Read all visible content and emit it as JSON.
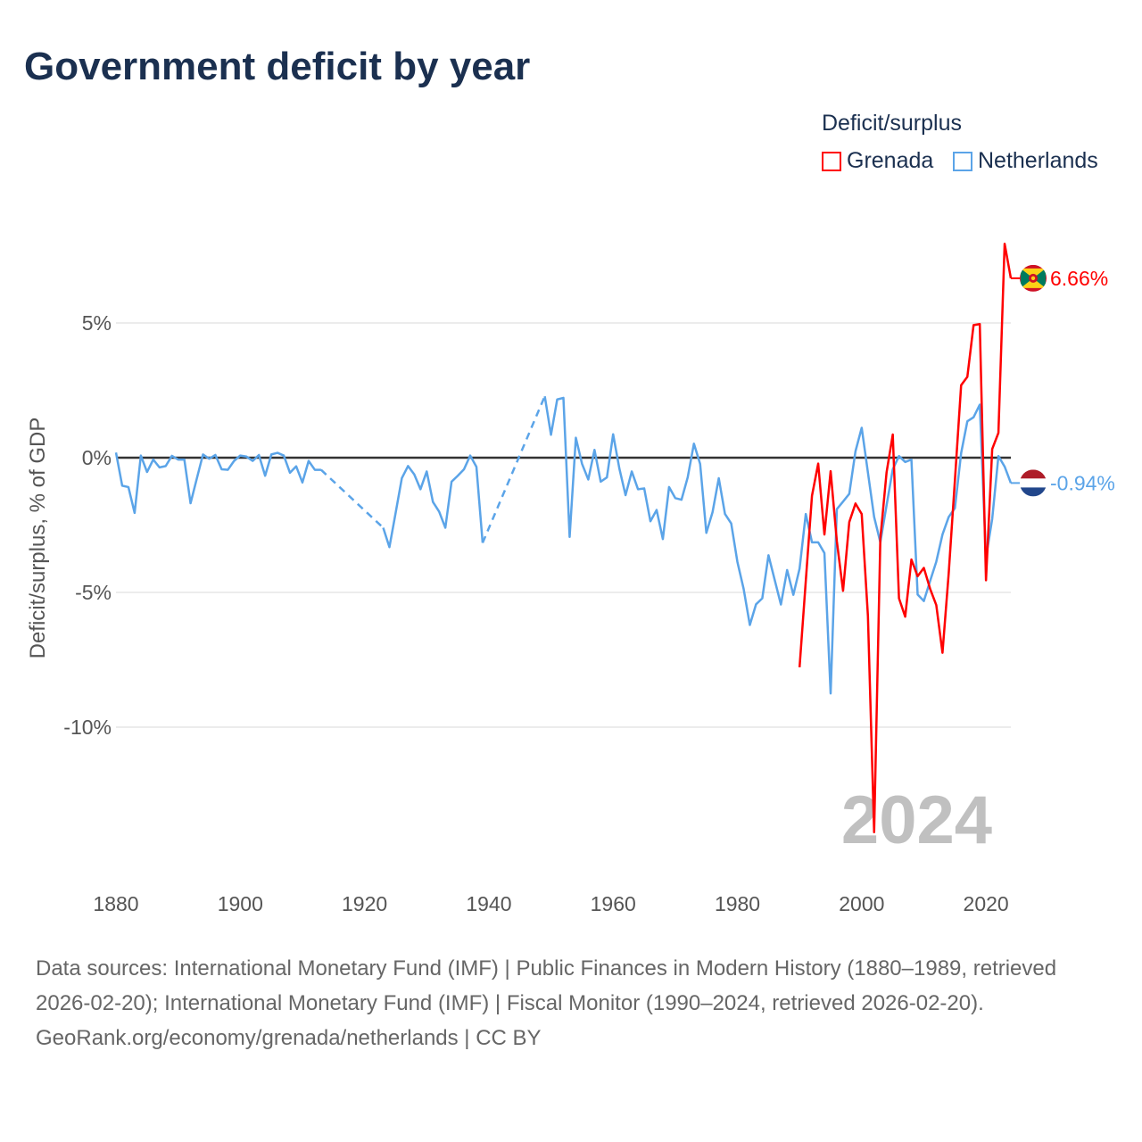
{
  "title": "Government deficit by year",
  "legend": {
    "title": "Deficit/surplus",
    "items": [
      {
        "name": "Grenada",
        "color": "#ff0000"
      },
      {
        "name": "Netherlands",
        "color": "#5ba4e8"
      }
    ]
  },
  "chart_data": {
    "type": "line",
    "title": "Government deficit by year",
    "ylabel": "Deficit/surplus, % of GDP",
    "xlabel": "",
    "xlim": [
      1880,
      2024
    ],
    "ylim": [
      -14.5,
      8.5
    ],
    "x_ticks": [
      1880,
      1900,
      1920,
      1940,
      1960,
      1980,
      2000,
      2020
    ],
    "y_ticks": [
      {
        "v": 5,
        "label": "5%"
      },
      {
        "v": 0,
        "label": "0%"
      },
      {
        "v": -5,
        "label": "-5%"
      },
      {
        "v": -10,
        "label": "-10%"
      }
    ],
    "grid": true,
    "legend_position": "top-right",
    "year_label": "2024",
    "series": [
      {
        "name": "Netherlands",
        "color": "#5ba4e8",
        "start_year": 1880,
        "end_label": "-0.94%",
        "flag": "netherlands",
        "values": [
          0.19,
          -1.04,
          -1.09,
          -2.05,
          0.08,
          -0.53,
          -0.07,
          -0.36,
          -0.31,
          0.07,
          -0.07,
          -0.07,
          -1.69,
          -0.78,
          0.12,
          -0.04,
          0.1,
          -0.43,
          -0.45,
          -0.12,
          0.08,
          0.04,
          -0.12,
          0.1,
          -0.67,
          0.12,
          0.18,
          0.08,
          -0.56,
          -0.32,
          -0.92,
          -0.12,
          -0.45,
          -0.45,
          null,
          null,
          null,
          null,
          null,
          null,
          null,
          null,
          null,
          -2.6,
          -3.32,
          -2.05,
          -0.76,
          -0.31,
          -0.62,
          -1.17,
          -0.51,
          -1.64,
          -2.0,
          -2.6,
          -0.89,
          -0.67,
          -0.43,
          0.08,
          -0.34,
          -3.16,
          null,
          null,
          null,
          null,
          null,
          null,
          null,
          null,
          null,
          2.28,
          0.85,
          2.16,
          2.22,
          -2.94,
          0.74,
          -0.23,
          -0.81,
          0.29,
          -0.89,
          -0.73,
          0.87,
          -0.4,
          -1.39,
          -0.51,
          -1.17,
          -1.14,
          -2.36,
          -1.94,
          -3.02,
          -1.09,
          -1.5,
          -1.56,
          -0.73,
          0.52,
          -0.23,
          -2.79,
          -2.02,
          -0.76,
          -2.09,
          -2.44,
          -3.87,
          -4.87,
          -6.21,
          -5.44,
          -5.22,
          -3.62,
          -4.54,
          -5.45,
          -4.17,
          -5.09,
          -4.12,
          -2.09,
          -3.14,
          -3.14,
          -3.54,
          -8.75,
          -1.91,
          -1.63,
          -1.34,
          0.24,
          1.11,
          -0.55,
          -2.2,
          -3.14,
          -1.77,
          -0.43,
          0.06,
          -0.16,
          -0.07,
          -5.08,
          -5.32,
          -4.58,
          -3.86,
          -2.85,
          -2.2,
          -1.87,
          0.17,
          1.35,
          1.5,
          1.97,
          -3.71,
          -2.27,
          0.06,
          -0.33,
          -0.94
        ]
      },
      {
        "name": "Grenada",
        "color": "#ff0000",
        "start_year": 1990,
        "end_label": "6.66%",
        "flag": "grenada",
        "values": [
          -7.78,
          -4.58,
          -1.41,
          -0.22,
          -2.85,
          -0.5,
          -3.1,
          -4.94,
          -2.39,
          -1.7,
          -2.09,
          -5.87,
          -13.9,
          -3.0,
          -0.55,
          0.86,
          -5.22,
          -5.9,
          -3.78,
          -4.4,
          -4.09,
          -4.86,
          -5.47,
          -7.24,
          -4.29,
          -0.83,
          2.69,
          3.0,
          4.92,
          4.96,
          -4.55,
          0.32,
          0.92,
          7.94,
          6.66
        ]
      }
    ]
  },
  "footer": {
    "sources": "Data sources: International Monetary Fund (IMF) | Public Finances in Modern History (1880–1989, retrieved 2026-02-20); International Monetary Fund (IMF) | Fiscal Monitor (1990–2024, retrieved 2026-02-20).",
    "credit": "GeoRank.org/economy/grenada/netherlands | CC BY"
  }
}
